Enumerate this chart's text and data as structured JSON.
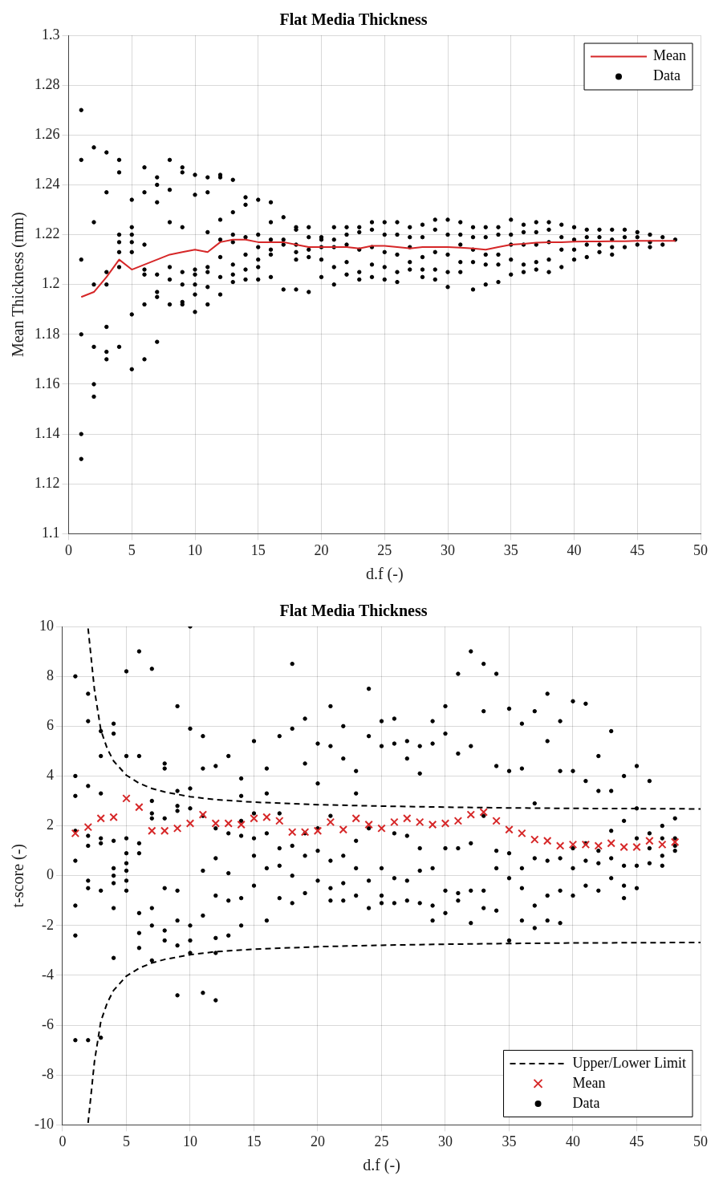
{
  "chart_data": [
    {
      "type": "scatter",
      "title": "Flat Media Thickness",
      "xlabel": "d.f (-)",
      "ylabel": "Mean Thickness (mm)",
      "xlim": [
        0,
        50
      ],
      "xticks": [
        0,
        5,
        10,
        15,
        20,
        25,
        30,
        35,
        40,
        45,
        50
      ],
      "ylim": [
        1.1,
        1.3
      ],
      "yticks": [
        1.1,
        1.12,
        1.14,
        1.16,
        1.18,
        1.2,
        1.22,
        1.24,
        1.26,
        1.28,
        1.3
      ],
      "grid": true,
      "legend": "top right",
      "series": [
        {
          "name": "Mean",
          "type": "line",
          "color": "#d62728",
          "marker": "none",
          "line_style": "solid",
          "x": [
            1,
            2,
            3,
            4,
            5,
            6,
            7,
            8,
            9,
            10,
            11,
            12,
            13,
            14,
            15,
            16,
            17,
            18,
            19,
            20,
            21,
            22,
            23,
            24,
            25,
            26,
            27,
            28,
            29,
            30,
            31,
            32,
            33,
            34,
            35,
            36,
            37,
            38,
            39,
            40,
            41,
            42,
            43,
            44,
            45,
            46,
            47,
            48
          ],
          "values": [
            1.195,
            1.197,
            1.203,
            1.21,
            1.206,
            1.208,
            1.21,
            1.212,
            1.213,
            1.214,
            1.213,
            1.217,
            1.218,
            1.218,
            1.217,
            1.217,
            1.217,
            1.216,
            1.215,
            1.215,
            1.215,
            1.215,
            1.2145,
            1.2155,
            1.2155,
            1.215,
            1.2145,
            1.215,
            1.215,
            1.215,
            1.2148,
            1.2145,
            1.214,
            1.215,
            1.216,
            1.2163,
            1.2168,
            1.217,
            1.217,
            1.2172,
            1.2173,
            1.2173,
            1.2174,
            1.2174,
            1.2175,
            1.2175,
            1.2175,
            1.2175
          ]
        },
        {
          "name": "Data",
          "type": "scatter",
          "color": "#000000",
          "marker": "circle",
          "x": [
            1,
            1,
            1,
            1,
            1,
            1,
            2,
            2,
            2,
            2,
            2,
            2,
            3,
            3,
            3,
            3,
            3,
            3,
            3,
            4,
            4,
            4,
            4,
            4,
            4,
            4,
            5,
            5,
            5,
            5,
            5,
            5,
            5,
            6,
            6,
            6,
            6,
            6,
            6,
            6,
            7,
            7,
            7,
            7,
            7,
            7,
            7,
            8,
            8,
            8,
            8,
            8,
            8,
            9,
            9,
            9,
            9,
            9,
            9,
            9,
            10,
            10,
            10,
            10,
            10,
            10,
            10,
            11,
            11,
            11,
            11,
            11,
            11,
            11,
            12,
            12,
            12,
            12,
            12,
            12,
            12,
            13,
            13,
            13,
            13,
            13,
            13,
            13,
            14,
            14,
            14,
            14,
            14,
            14,
            15,
            15,
            15,
            15,
            15,
            15,
            16,
            16,
            16,
            16,
            16,
            16,
            17,
            17,
            17,
            17,
            18,
            18,
            18,
            18,
            18,
            18,
            19,
            19,
            19,
            19,
            19,
            20,
            20,
            20,
            20,
            20,
            21,
            21,
            21,
            21,
            21,
            22,
            22,
            22,
            22,
            22,
            23,
            23,
            23,
            23,
            23,
            24,
            24,
            24,
            24,
            24,
            25,
            25,
            25,
            25,
            25,
            26,
            26,
            26,
            26,
            26,
            27,
            27,
            27,
            27,
            27,
            28,
            28,
            28,
            28,
            28,
            29,
            29,
            29,
            29,
            29,
            30,
            30,
            30,
            30,
            30,
            31,
            31,
            31,
            31,
            31,
            32,
            32,
            32,
            32,
            32,
            33,
            33,
            33,
            33,
            33,
            34,
            34,
            34,
            34,
            34,
            35,
            35,
            35,
            35,
            35,
            36,
            36,
            36,
            36,
            36,
            37,
            37,
            37,
            37,
            37,
            38,
            38,
            38,
            38,
            38,
            39,
            39,
            39,
            39,
            40,
            40,
            40,
            40,
            41,
            41,
            41,
            41,
            42,
            42,
            42,
            42,
            43,
            43,
            43,
            43,
            44,
            44,
            44,
            45,
            45,
            45,
            46,
            46,
            46,
            47,
            47,
            48
          ],
          "values": [
            1.27,
            1.25,
            1.21,
            1.18,
            1.14,
            1.13,
            1.255,
            1.225,
            1.2,
            1.175,
            1.16,
            1.155,
            1.253,
            1.237,
            1.205,
            1.2,
            1.183,
            1.173,
            1.17,
            1.25,
            1.245,
            1.22,
            1.217,
            1.213,
            1.207,
            1.175,
            1.234,
            1.223,
            1.22,
            1.217,
            1.213,
            1.188,
            1.166,
            1.247,
            1.237,
            1.216,
            1.206,
            1.204,
            1.192,
            1.17,
            1.243,
            1.24,
            1.233,
            1.204,
            1.197,
            1.195,
            1.177,
            1.25,
            1.238,
            1.225,
            1.207,
            1.202,
            1.192,
            1.247,
            1.245,
            1.223,
            1.205,
            1.2,
            1.193,
            1.192,
            1.244,
            1.236,
            1.206,
            1.204,
            1.2,
            1.196,
            1.189,
            1.243,
            1.237,
            1.221,
            1.207,
            1.205,
            1.199,
            1.192,
            1.244,
            1.243,
            1.226,
            1.218,
            1.211,
            1.203,
            1.196,
            1.242,
            1.229,
            1.22,
            1.217,
            1.208,
            1.204,
            1.201,
            1.235,
            1.232,
            1.219,
            1.212,
            1.206,
            1.202,
            1.234,
            1.22,
            1.215,
            1.21,
            1.207,
            1.202,
            1.233,
            1.225,
            1.218,
            1.214,
            1.212,
            1.203,
            1.227,
            1.218,
            1.216,
            1.198,
            1.223,
            1.222,
            1.216,
            1.213,
            1.21,
            1.198,
            1.223,
            1.219,
            1.214,
            1.211,
            1.197,
            1.219,
            1.218,
            1.215,
            1.21,
            1.203,
            1.223,
            1.218,
            1.215,
            1.207,
            1.2,
            1.223,
            1.22,
            1.216,
            1.209,
            1.204,
            1.223,
            1.221,
            1.214,
            1.205,
            1.202,
            1.225,
            1.222,
            1.215,
            1.208,
            1.203,
            1.225,
            1.22,
            1.213,
            1.207,
            1.202,
            1.225,
            1.22,
            1.212,
            1.205,
            1.201,
            1.223,
            1.219,
            1.215,
            1.209,
            1.206,
            1.224,
            1.219,
            1.211,
            1.206,
            1.203,
            1.226,
            1.222,
            1.213,
            1.206,
            1.202,
            1.226,
            1.22,
            1.212,
            1.205,
            1.199,
            1.225,
            1.22,
            1.216,
            1.209,
            1.205,
            1.223,
            1.219,
            1.214,
            1.209,
            1.198,
            1.223,
            1.219,
            1.212,
            1.208,
            1.2,
            1.223,
            1.22,
            1.212,
            1.208,
            1.201,
            1.226,
            1.22,
            1.216,
            1.21,
            1.204,
            1.224,
            1.221,
            1.216,
            1.208,
            1.205,
            1.225,
            1.221,
            1.216,
            1.209,
            1.206,
            1.225,
            1.222,
            1.217,
            1.21,
            1.205,
            1.224,
            1.219,
            1.214,
            1.207,
            1.223,
            1.218,
            1.214,
            1.21,
            1.222,
            1.219,
            1.216,
            1.211,
            1.222,
            1.219,
            1.216,
            1.213,
            1.222,
            1.218,
            1.215,
            1.212,
            1.222,
            1.219,
            1.215,
            1.221,
            1.219,
            1.216,
            1.22,
            1.217,
            1.215,
            1.219,
            1.216,
            1.218
          ]
        }
      ]
    },
    {
      "type": "scatter",
      "title": "Flat Media Thickness",
      "xlabel": "d.f (-)",
      "ylabel": "t-score (-)",
      "xlim": [
        0,
        50
      ],
      "xticks": [
        0,
        5,
        10,
        15,
        20,
        25,
        30,
        35,
        40,
        45,
        50
      ],
      "ylim": [
        -10,
        10
      ],
      "yticks": [
        -10,
        -8,
        -6,
        -4,
        -2,
        0,
        2,
        4,
        6,
        8,
        10
      ],
      "grid": true,
      "legend": "bottom right",
      "series": [
        {
          "name": "Upper/Lower Limit",
          "type": "line",
          "color": "#000000",
          "marker": "none",
          "line_style": "dashed",
          "x": [
            2,
            2.5,
            3,
            3.5,
            4,
            5,
            6,
            7,
            8,
            10,
            12,
            15,
            20,
            25,
            30,
            35,
            40,
            45,
            50
          ],
          "values": [
            9.92,
            7.45,
            5.84,
            5.1,
            4.6,
            4.03,
            3.71,
            3.5,
            3.36,
            3.17,
            3.05,
            2.95,
            2.85,
            2.79,
            2.75,
            2.72,
            2.7,
            2.69,
            2.68
          ]
        },
        {
          "type": "line",
          "color": "#000000",
          "marker": "none",
          "line_style": "dashed",
          "x": [
            2,
            2.5,
            3,
            3.5,
            4,
            5,
            6,
            7,
            8,
            10,
            12,
            15,
            20,
            25,
            30,
            35,
            40,
            45,
            50
          ],
          "values": [
            -9.92,
            -7.45,
            -5.84,
            -5.1,
            -4.6,
            -4.03,
            -3.71,
            -3.5,
            -3.36,
            -3.17,
            -3.05,
            -2.95,
            -2.85,
            -2.79,
            -2.75,
            -2.72,
            -2.7,
            -2.69,
            -2.68
          ]
        },
        {
          "name": "Mean",
          "type": "scatter",
          "color": "#d62728",
          "marker": "cross",
          "x": [
            1,
            2,
            3,
            4,
            5,
            6,
            7,
            8,
            9,
            10,
            11,
            12,
            13,
            14,
            15,
            16,
            17,
            18,
            19,
            20,
            21,
            22,
            23,
            24,
            25,
            26,
            27,
            28,
            29,
            30,
            31,
            32,
            33,
            34,
            35,
            36,
            37,
            38,
            39,
            40,
            41,
            42,
            43,
            44,
            45,
            46,
            47,
            48
          ],
          "values": [
            1.7,
            1.95,
            2.3,
            2.35,
            3.1,
            2.75,
            1.8,
            1.8,
            1.9,
            2.1,
            2.45,
            2.1,
            2.1,
            2.05,
            2.3,
            2.35,
            2.2,
            1.75,
            1.75,
            1.8,
            2.15,
            1.85,
            2.3,
            2.05,
            1.9,
            2.15,
            2.3,
            2.15,
            2.05,
            2.1,
            2.2,
            2.45,
            2.55,
            2.2,
            1.85,
            1.7,
            1.45,
            1.4,
            1.2,
            1.25,
            1.25,
            1.2,
            1.3,
            1.15,
            1.15,
            1.4,
            1.25,
            1.35
          ]
        },
        {
          "name": "Data",
          "type": "scatter",
          "color": "#000000",
          "marker": "circle",
          "x": [
            1,
            1,
            1,
            1,
            1,
            1,
            1,
            1,
            2,
            2,
            2,
            2,
            2,
            2,
            2,
            2,
            3,
            3,
            3,
            3,
            3,
            3,
            3,
            4,
            4,
            4,
            4,
            4,
            4,
            4,
            4,
            5,
            5,
            5,
            5,
            5,
            5,
            5,
            5,
            6,
            6,
            6,
            6,
            6,
            6,
            6,
            7,
            7,
            7,
            7,
            7,
            7,
            7,
            8,
            8,
            8,
            8,
            8,
            8,
            9,
            9,
            9,
            9,
            9,
            9,
            9,
            9,
            10,
            10,
            10,
            10,
            10,
            10,
            10,
            11,
            11,
            11,
            11,
            11,
            11,
            12,
            12,
            12,
            12,
            12,
            12,
            12,
            13,
            13,
            13,
            13,
            13,
            14,
            14,
            14,
            14,
            14,
            14,
            15,
            15,
            15,
            15,
            15,
            16,
            16,
            16,
            16,
            16,
            17,
            17,
            17,
            17,
            17,
            18,
            18,
            18,
            18,
            18,
            19,
            19,
            19,
            19,
            19,
            20,
            20,
            20,
            20,
            20,
            21,
            21,
            21,
            21,
            21,
            21,
            22,
            22,
            22,
            22,
            22,
            23,
            23,
            23,
            23,
            23,
            24,
            24,
            24,
            24,
            24,
            25,
            25,
            25,
            25,
            25,
            26,
            26,
            26,
            26,
            26,
            27,
            27,
            27,
            27,
            27,
            28,
            28,
            28,
            28,
            28,
            29,
            29,
            29,
            29,
            29,
            30,
            30,
            30,
            30,
            30,
            31,
            31,
            31,
            31,
            31,
            32,
            32,
            32,
            32,
            32,
            33,
            33,
            33,
            33,
            33,
            34,
            34,
            34,
            34,
            34,
            35,
            35,
            35,
            35,
            35,
            36,
            36,
            36,
            36,
            36,
            37,
            37,
            37,
            37,
            37,
            38,
            38,
            38,
            38,
            38,
            39,
            39,
            39,
            39,
            39,
            40,
            40,
            40,
            40,
            40,
            41,
            41,
            41,
            41,
            41,
            42,
            42,
            42,
            42,
            42,
            43,
            43,
            43,
            43,
            43,
            44,
            44,
            44,
            44,
            44,
            45,
            45,
            45,
            45,
            45,
            46,
            46,
            46,
            46,
            47,
            47,
            47,
            47,
            48,
            48,
            48,
            48
          ],
          "values": [
            8.0,
            4.0,
            3.2,
            1.8,
            0.6,
            -1.2,
            -2.4,
            -6.6,
            7.3,
            6.2,
            3.6,
            1.6,
            1.2,
            -0.2,
            -0.5,
            -6.6,
            5.8,
            4.8,
            3.3,
            1.5,
            1.3,
            -0.6,
            -6.5,
            6.1,
            5.7,
            1.4,
            0.3,
            0.0,
            -0.3,
            -1.3,
            -3.3,
            8.2,
            4.8,
            1.5,
            0.9,
            0.5,
            0.2,
            -0.2,
            -0.6,
            9.0,
            4.8,
            1.3,
            0.9,
            -1.5,
            -2.3,
            -2.9,
            8.3,
            3.0,
            2.5,
            2.3,
            -1.3,
            -2.0,
            -3.4,
            4.5,
            4.3,
            2.3,
            -0.5,
            -2.2,
            -2.6,
            6.8,
            3.4,
            2.8,
            2.6,
            -0.6,
            -1.8,
            -2.8,
            -4.8,
            10.0,
            5.9,
            3.5,
            2.7,
            -2.0,
            -2.6,
            -3.1,
            5.6,
            4.3,
            2.4,
            0.2,
            -1.6,
            -4.7,
            4.4,
            1.9,
            0.7,
            -0.8,
            -2.5,
            -3.1,
            -5.0,
            4.8,
            1.7,
            0.1,
            -1.0,
            -2.4,
            3.9,
            3.2,
            2.2,
            1.6,
            -0.9,
            -2.0,
            5.4,
            2.5,
            1.5,
            0.8,
            -0.4,
            4.3,
            3.3,
            1.7,
            0.3,
            -1.8,
            5.6,
            2.5,
            1.1,
            0.4,
            -0.9,
            8.5,
            5.9,
            1.2,
            0.0,
            -1.1,
            6.3,
            4.5,
            1.7,
            0.8,
            -0.7,
            5.3,
            3.7,
            1.9,
            1.0,
            -0.2,
            6.8,
            5.2,
            2.4,
            0.6,
            -0.5,
            -1.0,
            6.0,
            4.7,
            0.8,
            -0.3,
            -1.0,
            4.2,
            3.3,
            1.4,
            0.3,
            -0.8,
            7.5,
            5.6,
            1.9,
            -0.2,
            -1.3,
            6.2,
            5.2,
            0.3,
            -0.8,
            -1.1,
            6.3,
            5.3,
            1.7,
            -0.1,
            -1.1,
            5.4,
            4.7,
            1.6,
            -0.2,
            -1.0,
            5.2,
            4.1,
            1.1,
            0.2,
            -1.1,
            6.2,
            5.3,
            0.3,
            -1.2,
            -1.8,
            6.8,
            5.7,
            1.1,
            -0.6,
            -1.5,
            8.1,
            4.9,
            1.1,
            -0.7,
            -1.0,
            9.0,
            5.2,
            1.3,
            -0.6,
            -1.9,
            8.5,
            6.6,
            2.4,
            -0.6,
            -1.3,
            8.1,
            4.4,
            1.0,
            0.3,
            -1.4,
            6.7,
            4.2,
            0.9,
            -0.1,
            -2.6,
            6.1,
            4.3,
            0.3,
            -0.5,
            -1.8,
            6.6,
            2.9,
            0.7,
            -1.2,
            -2.1,
            7.3,
            5.4,
            0.6,
            -0.8,
            -1.8,
            6.2,
            4.2,
            0.7,
            -0.6,
            -1.9,
            7.0,
            4.2,
            1.1,
            0.3,
            -0.8,
            6.9,
            3.8,
            1.3,
            0.6,
            -0.4,
            4.8,
            3.4,
            1.0,
            0.5,
            -0.6,
            5.8,
            3.4,
            1.8,
            0.7,
            -0.1,
            4.0,
            2.2,
            0.4,
            -0.4,
            -0.9,
            4.4,
            2.7,
            1.5,
            0.4,
            -0.5,
            3.8,
            1.7,
            1.1,
            0.5,
            2.0,
            1.5,
            0.8,
            0.4,
            2.3,
            1.5,
            1.2,
            1.0
          ]
        }
      ]
    }
  ]
}
